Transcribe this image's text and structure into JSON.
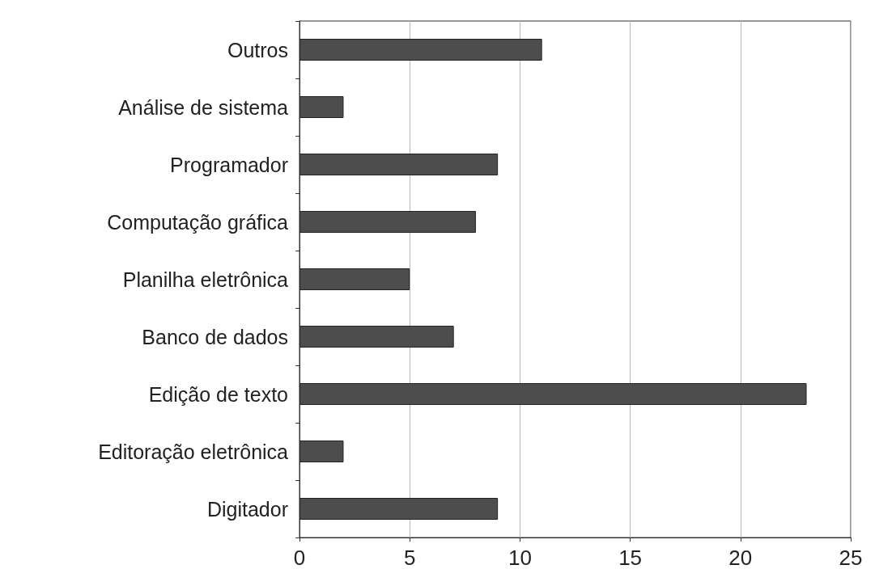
{
  "chart_data": {
    "type": "bar",
    "orientation": "horizontal",
    "categories": [
      "Outros",
      "Análise de sistema",
      "Programador",
      "Computação gráfica",
      "Planilha eletrônica",
      "Banco de dados",
      "Edição de texto",
      "Editoração eletrônica",
      "Digitador"
    ],
    "values": [
      11,
      2,
      9,
      8,
      5,
      7,
      23,
      2,
      9
    ],
    "color": "#4d4d4d",
    "xlim": [
      0,
      25
    ],
    "xticks": [
      0,
      5,
      10,
      15,
      20,
      25
    ],
    "grid": "x"
  }
}
